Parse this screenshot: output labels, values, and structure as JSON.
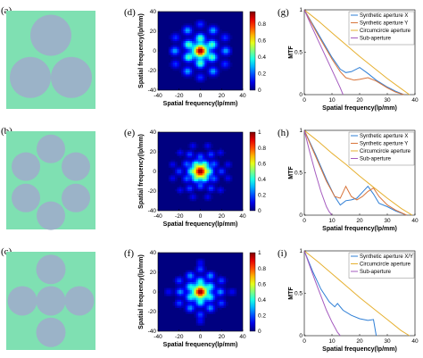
{
  "colors": {
    "pupil_background": "#7fe0b2",
    "aperture_fill": "#9bb3c8",
    "colorbar_colormap": "jet",
    "synthetic_x": "#2f7fd6",
    "synthetic_y": "#d8743a",
    "circumcircle": "#e6b030",
    "sub_aperture": "#a55bbf"
  },
  "rows": [
    {
      "row_id": "row-1",
      "pupil_label": "(a)",
      "psf_label": "(d)",
      "mtf_label": "(g)",
      "aperture_layout": "three-sub-apertures",
      "psf_pattern": "three-aperture",
      "colorbar_ticks": [
        "0",
        "0.2",
        "0.4",
        "0.6",
        "0.8"
      ],
      "legend": [
        "Synthetic aperture X",
        "Synthetic aperture Y",
        "Circumcircle aperture",
        "Sub-aperture"
      ]
    },
    {
      "row_id": "row-2",
      "pupil_label": "(b)",
      "psf_label": "(e)",
      "mtf_label": "(h)",
      "aperture_layout": "six-sub-apertures-ring",
      "psf_pattern": "six-aperture-ring",
      "colorbar_ticks": [
        "0",
        "0.2",
        "0.4",
        "0.6",
        "0.8",
        "1"
      ],
      "legend": [
        "Synthetic aperture X",
        "Synthetic aperture Y",
        "Circumcircle aperture",
        "Sub-aperture"
      ]
    },
    {
      "row_id": "row-3",
      "pupil_label": "(c)",
      "psf_label": "(f)",
      "mtf_label": "(i)",
      "aperture_layout": "five-sub-apertures-cross",
      "psf_pattern": "cross-aperture",
      "colorbar_ticks": [
        "0",
        "0.2",
        "0.4",
        "0.6",
        "0.8",
        "1"
      ],
      "legend": [
        "Synthetic aperture X/Y",
        "Circumcircle aperture",
        "Sub-aperture"
      ]
    }
  ],
  "psf_axes": {
    "xlabel": "Spatial frequency(lp/mm)",
    "ylabel": "Spatial frequency(lp/mm)",
    "x_ticks": [
      "-40",
      "-20",
      "0",
      "20",
      "40"
    ],
    "y_ticks": [
      "-40",
      "-20",
      "0",
      "20",
      "40"
    ]
  },
  "mtf_axes": {
    "xlabel": "Spatial frequency(lp/mm)",
    "ylabel": "MTF",
    "x_ticks": [
      "0",
      "10",
      "20",
      "30",
      "40"
    ],
    "y_ticks": [
      "0",
      "0.5",
      "1"
    ]
  },
  "chart_data": [
    {
      "type": "line",
      "panel": "(g)",
      "xlabel": "Spatial frequency(lp/mm)",
      "ylabel": "MTF",
      "xlim": [
        0,
        40
      ],
      "ylim": [
        0,
        1
      ],
      "series": [
        {
          "name": "Synthetic aperture X",
          "x": [
            0,
            5,
            10,
            13,
            15,
            17,
            20,
            23,
            26,
            30,
            33,
            36
          ],
          "y": [
            1,
            0.72,
            0.44,
            0.3,
            0.26,
            0.27,
            0.32,
            0.25,
            0.17,
            0.09,
            0.04,
            0
          ]
        },
        {
          "name": "Synthetic aperture Y",
          "x": [
            0,
            5,
            10,
            13,
            15,
            18,
            20,
            23,
            26,
            30,
            33,
            36
          ],
          "y": [
            1,
            0.7,
            0.42,
            0.27,
            0.2,
            0.17,
            0.18,
            0.2,
            0.16,
            0.08,
            0.03,
            0
          ]
        },
        {
          "name": "Circumcircle aperture",
          "x": [
            0,
            5,
            10,
            15,
            20,
            25,
            30,
            35,
            38
          ],
          "y": [
            1,
            0.87,
            0.73,
            0.59,
            0.45,
            0.32,
            0.19,
            0.07,
            0
          ]
        },
        {
          "name": "Sub-aperture",
          "x": [
            0,
            3,
            6,
            9,
            11,
            13,
            14
          ],
          "y": [
            1,
            0.78,
            0.57,
            0.36,
            0.22,
            0.08,
            0
          ]
        }
      ]
    },
    {
      "type": "line",
      "panel": "(h)",
      "xlabel": "Spatial frequency(lp/mm)",
      "ylabel": "MTF",
      "xlim": [
        0,
        40
      ],
      "ylim": [
        0,
        1
      ],
      "series": [
        {
          "name": "Synthetic aperture X",
          "x": [
            0,
            4,
            8,
            11,
            13,
            15,
            17,
            19,
            21,
            23,
            25,
            27,
            30,
            33,
            37
          ],
          "y": [
            1,
            0.72,
            0.42,
            0.22,
            0.12,
            0.17,
            0.18,
            0.2,
            0.27,
            0.34,
            0.25,
            0.14,
            0.1,
            0.05,
            0
          ]
        },
        {
          "name": "Synthetic aperture Y",
          "x": [
            0,
            4,
            8,
            11,
            13,
            15,
            17,
            19,
            21,
            23,
            25,
            27,
            30,
            33,
            37
          ],
          "y": [
            1,
            0.7,
            0.4,
            0.22,
            0.2,
            0.34,
            0.22,
            0.18,
            0.22,
            0.28,
            0.32,
            0.22,
            0.12,
            0.06,
            0
          ]
        },
        {
          "name": "Circumcircle aperture",
          "x": [
            0,
            5,
            10,
            15,
            20,
            25,
            30,
            35,
            39
          ],
          "y": [
            1,
            0.87,
            0.73,
            0.6,
            0.46,
            0.33,
            0.2,
            0.08,
            0
          ]
        },
        {
          "name": "Sub-aperture",
          "x": [
            0,
            2,
            4,
            6,
            8,
            9,
            10
          ],
          "y": [
            1,
            0.74,
            0.5,
            0.28,
            0.1,
            0.04,
            0
          ]
        }
      ]
    },
    {
      "type": "line",
      "panel": "(i)",
      "xlabel": "Spatial frequency(lp/mm)",
      "ylabel": "MTF",
      "xlim": [
        0,
        40
      ],
      "ylim": [
        0,
        1
      ],
      "series": [
        {
          "name": "Synthetic aperture X/Y",
          "x": [
            0,
            3,
            6,
            9,
            11,
            12,
            14,
            17,
            20,
            23,
            25,
            26
          ],
          "y": [
            1,
            0.76,
            0.55,
            0.4,
            0.34,
            0.38,
            0.3,
            0.24,
            0.2,
            0.18,
            0.19,
            0
          ]
        },
        {
          "name": "Circumcircle aperture",
          "x": [
            0,
            5,
            10,
            15,
            20,
            25,
            30,
            35,
            38
          ],
          "y": [
            1,
            0.87,
            0.73,
            0.59,
            0.45,
            0.32,
            0.19,
            0.06,
            0
          ]
        },
        {
          "name": "Sub-aperture",
          "x": [
            0,
            2,
            4,
            6,
            8,
            10,
            12,
            13
          ],
          "y": [
            1,
            0.82,
            0.64,
            0.47,
            0.3,
            0.16,
            0.04,
            0
          ]
        }
      ]
    }
  ]
}
